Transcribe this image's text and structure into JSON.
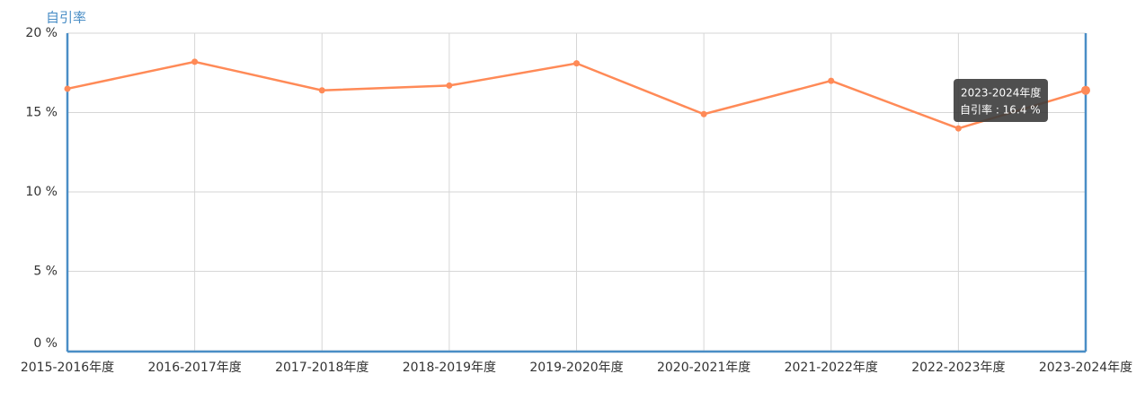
{
  "chart_data": {
    "type": "line",
    "y_axis_name": "自引率",
    "categories": [
      "2015-2016年度",
      "2016-2017年度",
      "2017-2018年度",
      "2018-2019年度",
      "2019-2020年度",
      "2020-2021年度",
      "2021-2022年度",
      "2022-2023年度",
      "2023-2024年度"
    ],
    "series": [
      {
        "name": "自引率",
        "color": "#ff8a57",
        "values": [
          16.5,
          18.2,
          16.4,
          16.7,
          18.1,
          14.9,
          17.0,
          14.0,
          16.4
        ]
      }
    ],
    "ylim": [
      0,
      20
    ],
    "yticks": [
      {
        "value": 0,
        "label": "0 %"
      },
      {
        "value": 5,
        "label": "5 %"
      },
      {
        "value": 10,
        "label": "10 %"
      },
      {
        "value": 15,
        "label": "15 %"
      },
      {
        "value": 20,
        "label": "20 %"
      }
    ],
    "grid": true,
    "tooltip": {
      "label": "自引率 : 16.4 %"
    }
  }
}
